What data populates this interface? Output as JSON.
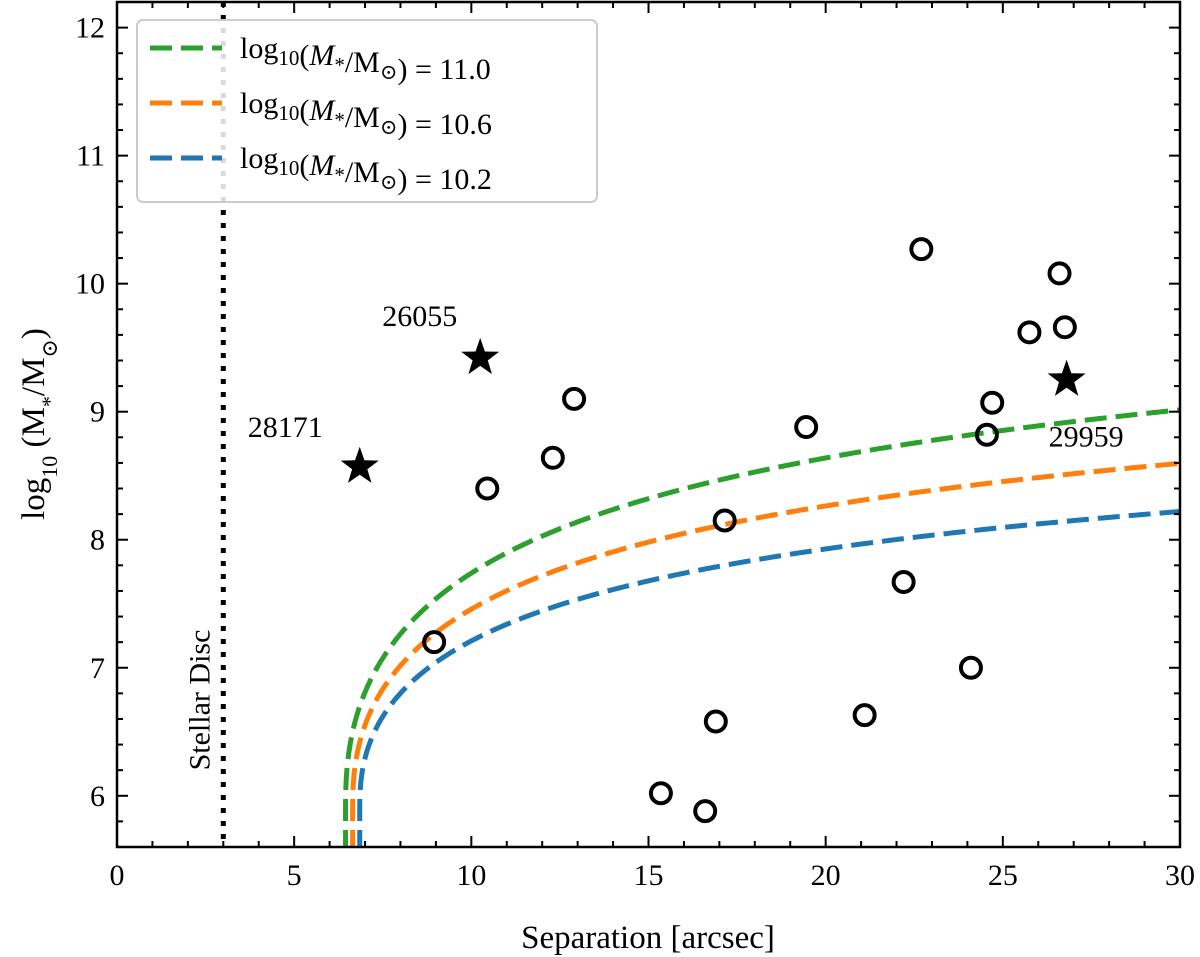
{
  "chart_data": {
    "type": "scatter",
    "xlabel": "Separation [arcsec]",
    "ylabel_main": "log",
    "ylabel_sub": "10",
    "ylabel_rest": " (M",
    "ylabel_star": "*",
    "ylabel_tail": "/M",
    "ylabel_sun": "⊙",
    "ylabel_close": ")",
    "xlim": [
      0,
      30
    ],
    "ylim": [
      5.6,
      12.2
    ],
    "xticks": [
      0,
      5,
      10,
      15,
      20,
      25,
      30
    ],
    "yticks": [
      6,
      7,
      8,
      9,
      10,
      11,
      12
    ],
    "xtick_labels": [
      "0",
      "5",
      "10",
      "15",
      "20",
      "25",
      "30"
    ],
    "ytick_labels": [
      "6",
      "7",
      "8",
      "9",
      "10",
      "11",
      "12"
    ],
    "xminor_step": 1,
    "yminor_step": 0.2,
    "vline": {
      "x": 3,
      "label": "Stellar Disc"
    },
    "curves": [
      {
        "name": "11.0",
        "legend": "log10(M*/M⊙) = 11.0",
        "legend_value": "11.0",
        "color": "#2ca02c",
        "x0": 6.45,
        "offset": 5.9,
        "scale": 2.6
      },
      {
        "name": "10.6",
        "legend": "log10(M*/M⊙) = 10.6",
        "legend_value": "10.6",
        "color": "#ff7f0e",
        "x0": 6.65,
        "offset": 5.9,
        "scale": 2.27
      },
      {
        "name": "10.2",
        "legend": "log10(M*/M⊙) = 10.2",
        "legend_value": "10.2",
        "color": "#1f77b4",
        "x0": 6.85,
        "offset": 5.9,
        "scale": 1.97
      }
    ],
    "legend_prefix": "log",
    "legend_sub": "10",
    "legend_mid1": "(",
    "legend_M": "M",
    "legend_star": "*",
    "legend_slash": "/M",
    "legend_sun": "⊙",
    "legend_eq": ") = ",
    "stars": [
      {
        "id": "28171",
        "x": 6.85,
        "y": 8.57
      },
      {
        "id": "26055",
        "x": 10.25,
        "y": 9.42
      },
      {
        "id": "29959",
        "x": 26.8,
        "y": 9.25
      }
    ],
    "circles": [
      {
        "x": 8.95,
        "y": 7.2
      },
      {
        "x": 10.45,
        "y": 8.4
      },
      {
        "x": 12.3,
        "y": 8.64
      },
      {
        "x": 12.9,
        "y": 9.1
      },
      {
        "x": 15.35,
        "y": 6.02
      },
      {
        "x": 16.6,
        "y": 5.88
      },
      {
        "x": 16.9,
        "y": 6.58
      },
      {
        "x": 17.15,
        "y": 8.15
      },
      {
        "x": 19.45,
        "y": 8.88
      },
      {
        "x": 21.1,
        "y": 6.63
      },
      {
        "x": 22.2,
        "y": 7.67
      },
      {
        "x": 22.7,
        "y": 10.27
      },
      {
        "x": 24.1,
        "y": 7.0
      },
      {
        "x": 24.55,
        "y": 8.82
      },
      {
        "x": 24.7,
        "y": 9.07
      },
      {
        "x": 25.75,
        "y": 9.62
      },
      {
        "x": 26.6,
        "y": 10.08
      },
      {
        "x": 26.75,
        "y": 9.66
      }
    ]
  }
}
